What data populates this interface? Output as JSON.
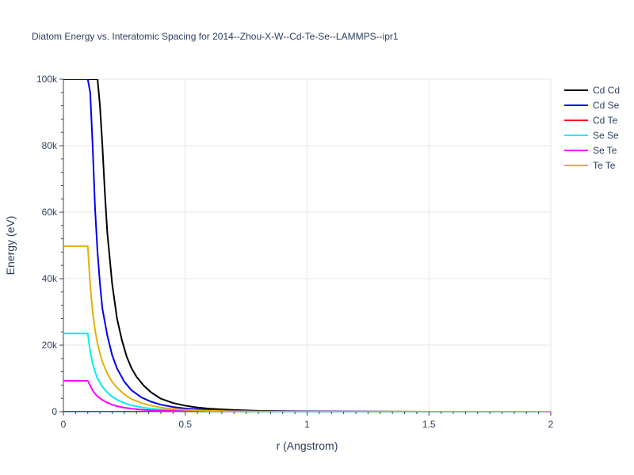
{
  "chart_data": {
    "type": "line",
    "title": "Diatom Energy vs. Interatomic Spacing for 2014--Zhou-X-W--Cd-Te-Se--LAMMPS--ipr1",
    "xlabel": "r (Angstrom)",
    "ylabel": "Energy (eV)",
    "xlim": [
      0,
      2
    ],
    "ylim": [
      0,
      100000
    ],
    "x_ticks": [
      0,
      0.5,
      1,
      1.5,
      2
    ],
    "x_tick_labels": [
      "0",
      "0.5",
      "1",
      "1.5",
      "2"
    ],
    "y_ticks": [
      0,
      20000,
      40000,
      60000,
      80000,
      100000
    ],
    "y_tick_labels": [
      "0",
      "20k",
      "40k",
      "60k",
      "80k",
      "100k"
    ],
    "grid": true,
    "legend_position": "top-right",
    "series": [
      {
        "name": "Cd Cd",
        "color": "#000000",
        "x": [
          0.0,
          0.14,
          0.15,
          0.16,
          0.17,
          0.18,
          0.2,
          0.22,
          0.24,
          0.26,
          0.28,
          0.3,
          0.33,
          0.36,
          0.4,
          0.45,
          0.5,
          0.55,
          0.6,
          0.7,
          0.8,
          1.0,
          1.5,
          2.0
        ],
        "y": [
          100000,
          100000,
          92000,
          80000,
          66000,
          54000,
          38500,
          28000,
          21500,
          16500,
          13000,
          10500,
          7800,
          5800,
          3900,
          2600,
          1800,
          1250,
          900,
          500,
          280,
          100,
          0,
          0
        ]
      },
      {
        "name": "Cd Se",
        "color": "#0000ee",
        "x": [
          0.0,
          0.1,
          0.11,
          0.12,
          0.13,
          0.14,
          0.15,
          0.16,
          0.18,
          0.2,
          0.22,
          0.25,
          0.28,
          0.32,
          0.36,
          0.4,
          0.45,
          0.5,
          0.6,
          0.7,
          0.8,
          1.0,
          1.5,
          2.0
        ],
        "y": [
          100000,
          100000,
          96000,
          80000,
          61000,
          48000,
          38500,
          31000,
          23000,
          17000,
          13000,
          9000,
          6400,
          4300,
          3000,
          2100,
          1400,
          950,
          480,
          250,
          130,
          40,
          0,
          0
        ]
      },
      {
        "name": "Cd Te",
        "color": "#ff0000",
        "x": [
          0.0,
          0.5,
          1.0,
          1.5,
          2.0
        ],
        "y": [
          0,
          0,
          0,
          0,
          0
        ]
      },
      {
        "name": "Se Se",
        "color": "#00eeee",
        "x": [
          0.0,
          0.1,
          0.11,
          0.12,
          0.13,
          0.14,
          0.16,
          0.18,
          0.2,
          0.22,
          0.25,
          0.28,
          0.32,
          0.36,
          0.4,
          0.5,
          0.6,
          0.8,
          1.0,
          1.5,
          2.0
        ],
        "y": [
          23500,
          23500,
          18000,
          14500,
          12000,
          10000,
          7500,
          5800,
          4500,
          3600,
          2600,
          1900,
          1300,
          900,
          650,
          300,
          140,
          40,
          10,
          0,
          0
        ]
      },
      {
        "name": "Se Te",
        "color": "#ff00ff",
        "x": [
          0.0,
          0.1,
          0.11,
          0.12,
          0.13,
          0.14,
          0.16,
          0.18,
          0.2,
          0.22,
          0.25,
          0.28,
          0.32,
          0.36,
          0.4,
          0.5,
          0.6,
          0.8,
          1.0,
          1.5,
          2.0
        ],
        "y": [
          9300,
          9300,
          7800,
          6400,
          5400,
          4600,
          3500,
          2700,
          2100,
          1650,
          1200,
          880,
          600,
          420,
          300,
          140,
          65,
          15,
          4,
          0,
          0
        ]
      },
      {
        "name": "Te Te",
        "color": "#e6b000",
        "x": [
          0.0,
          0.1,
          0.11,
          0.12,
          0.13,
          0.14,
          0.15,
          0.16,
          0.18,
          0.2,
          0.22,
          0.25,
          0.28,
          0.32,
          0.36,
          0.4,
          0.45,
          0.5,
          0.6,
          0.7,
          0.8,
          1.0,
          1.5,
          2.0
        ],
        "y": [
          49800,
          49800,
          38000,
          30000,
          24500,
          20500,
          17500,
          15000,
          11500,
          9000,
          7200,
          5200,
          3800,
          2600,
          1800,
          1250,
          820,
          560,
          260,
          120,
          60,
          15,
          0,
          0
        ]
      }
    ]
  }
}
